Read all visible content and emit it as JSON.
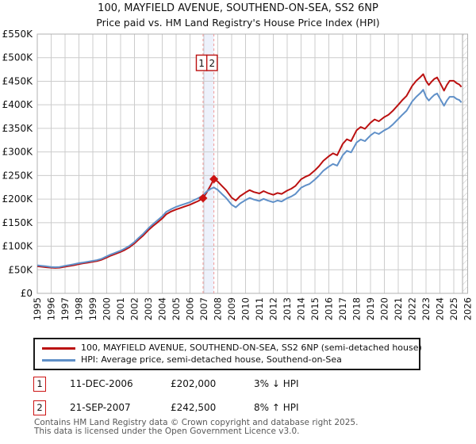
{
  "title": {
    "line1": "100, MAYFIELD AVENUE, SOUTHEND-ON-SEA, SS2 6NP",
    "line2": "Price paid vs. HM Land Registry's House Price Index (HPI)"
  },
  "legend": [
    {
      "label": "100, MAYFIELD AVENUE, SOUTHEND-ON-SEA, SS2 6NP (semi-detached house)",
      "color": "#bb1111"
    },
    {
      "label": "HPI: Average price, semi-detached house, Southend-on-Sea",
      "color": "#6090c8"
    }
  ],
  "transactions": [
    {
      "num": "1",
      "date": "11-DEC-2006",
      "price": "£202,000",
      "hpi_diff": "3% ↓ HPI",
      "year": 2006.94,
      "value_k": 202
    },
    {
      "num": "2",
      "date": "21-SEP-2007",
      "price": "£242,500",
      "hpi_diff": "8% ↑ HPI",
      "year": 2007.72,
      "value_k": 242.5
    }
  ],
  "footer": {
    "line1": "Contains HM Land Registry data © Crown copyright and database right 2025.",
    "line2": "This data is licensed under the Open Government Licence v3.0."
  },
  "chart_data": {
    "type": "line",
    "title": "100, MAYFIELD AVENUE, SOUTHEND-ON-SEA, SS2 6NP — Price paid vs. HPI",
    "values_unit": "GBP thousands",
    "x_axis": {
      "min": 1995,
      "max": 2026,
      "ticks": [
        1995,
        1996,
        1997,
        1998,
        1999,
        2000,
        2001,
        2002,
        2003,
        2004,
        2005,
        2006,
        2007,
        2008,
        2009,
        2010,
        2011,
        2012,
        2013,
        2014,
        2015,
        2016,
        2017,
        2018,
        2019,
        2020,
        2021,
        2022,
        2023,
        2024,
        2025,
        2026
      ]
    },
    "y_axis": {
      "min_k": 0,
      "max_k": 550,
      "step_k": 50,
      "labels": [
        "£0",
        "£50K",
        "£100K",
        "£150K",
        "£200K",
        "£250K",
        "£300K",
        "£350K",
        "£400K",
        "£450K",
        "£500K",
        "£550K"
      ]
    },
    "grid": true,
    "legend_position": "bottom",
    "hatch_start_year": 2025.63,
    "colors": {
      "grid": "#cccccc",
      "border": "#b0b0b0",
      "band": "#edf1fb",
      "dashed": "#f19a9a",
      "hatch": "#c4c4c4",
      "marker": "#cc1414"
    },
    "series": [
      {
        "name": "100, MAYFIELD AVENUE, SOUTHEND-ON-SEA, SS2 6NP (semi-detached house)",
        "color": "#bb1111",
        "points": [
          [
            1995,
            57.5
          ],
          [
            1995.3,
            56.5
          ],
          [
            1995.6,
            55.5
          ],
          [
            1996,
            54.5
          ],
          [
            1996.3,
            54
          ],
          [
            1996.6,
            54.5
          ],
          [
            1997,
            56.5
          ],
          [
            1997.3,
            58
          ],
          [
            1997.6,
            59.5
          ],
          [
            1998,
            62
          ],
          [
            1998.3,
            63.5
          ],
          [
            1998.6,
            65
          ],
          [
            1999,
            67
          ],
          [
            1999.3,
            68.5
          ],
          [
            1999.6,
            71
          ],
          [
            2000,
            76
          ],
          [
            2000.3,
            80
          ],
          [
            2000.6,
            83.5
          ],
          [
            2001,
            88
          ],
          [
            2001.3,
            92
          ],
          [
            2001.6,
            97
          ],
          [
            2002,
            106
          ],
          [
            2002.3,
            114
          ],
          [
            2002.6,
            122
          ],
          [
            2003,
            134
          ],
          [
            2003.3,
            142
          ],
          [
            2003.6,
            149
          ],
          [
            2004,
            159
          ],
          [
            2004.3,
            168
          ],
          [
            2004.6,
            173
          ],
          [
            2005,
            178
          ],
          [
            2005.3,
            181
          ],
          [
            2005.6,
            184
          ],
          [
            2006,
            188
          ],
          [
            2006.3,
            192
          ],
          [
            2006.6,
            196
          ],
          [
            2006.94,
            202
          ],
          [
            2007.2,
            214
          ],
          [
            2007.5,
            230
          ],
          [
            2007.72,
            242.5
          ],
          [
            2008,
            237
          ],
          [
            2008.3,
            228
          ],
          [
            2008.6,
            219
          ],
          [
            2009,
            203
          ],
          [
            2009.3,
            197
          ],
          [
            2009.6,
            206
          ],
          [
            2010,
            214
          ],
          [
            2010.3,
            219
          ],
          [
            2010.6,
            215
          ],
          [
            2011,
            212
          ],
          [
            2011.3,
            217
          ],
          [
            2011.6,
            213
          ],
          [
            2012,
            209
          ],
          [
            2012.3,
            213
          ],
          [
            2012.6,
            211
          ],
          [
            2013,
            218
          ],
          [
            2013.3,
            222
          ],
          [
            2013.6,
            228
          ],
          [
            2014,
            242
          ],
          [
            2014.3,
            247
          ],
          [
            2014.6,
            251
          ],
          [
            2015,
            261
          ],
          [
            2015.3,
            270
          ],
          [
            2015.6,
            281
          ],
          [
            2016,
            291
          ],
          [
            2016.3,
            297
          ],
          [
            2016.6,
            293
          ],
          [
            2017,
            317
          ],
          [
            2017.3,
            327
          ],
          [
            2017.6,
            323
          ],
          [
            2018,
            346
          ],
          [
            2018.3,
            353
          ],
          [
            2018.6,
            349
          ],
          [
            2019,
            362
          ],
          [
            2019.3,
            369
          ],
          [
            2019.6,
            365
          ],
          [
            2020,
            374
          ],
          [
            2020.3,
            379
          ],
          [
            2020.6,
            387
          ],
          [
            2021,
            400
          ],
          [
            2021.3,
            410
          ],
          [
            2021.6,
            419
          ],
          [
            2022,
            440
          ],
          [
            2022.3,
            451
          ],
          [
            2022.6,
            459
          ],
          [
            2022.8,
            465
          ],
          [
            2023,
            451
          ],
          [
            2023.2,
            442
          ],
          [
            2023.4,
            449
          ],
          [
            2023.6,
            455
          ],
          [
            2023.8,
            458
          ],
          [
            2024,
            447
          ],
          [
            2024.3,
            430
          ],
          [
            2024.5,
            442
          ],
          [
            2024.7,
            451
          ],
          [
            2025,
            451
          ],
          [
            2025.2,
            446
          ],
          [
            2025.4,
            443
          ],
          [
            2025.55,
            438
          ]
        ]
      },
      {
        "name": "HPI: Average price, semi-detached house, Southend-on-Sea",
        "color": "#6090c8",
        "points": [
          [
            1995,
            59.5
          ],
          [
            1995.3,
            58.5
          ],
          [
            1995.6,
            57.5
          ],
          [
            1996,
            56
          ],
          [
            1996.3,
            55.5
          ],
          [
            1996.6,
            56
          ],
          [
            1997,
            58.5
          ],
          [
            1997.3,
            60
          ],
          [
            1997.6,
            61.5
          ],
          [
            1998,
            64
          ],
          [
            1998.3,
            65.5
          ],
          [
            1998.6,
            67
          ],
          [
            1999,
            69
          ],
          [
            1999.3,
            70.5
          ],
          [
            1999.6,
            73
          ],
          [
            2000,
            78.5
          ],
          [
            2000.3,
            82.5
          ],
          [
            2000.6,
            86
          ],
          [
            2001,
            90.5
          ],
          [
            2001.3,
            95
          ],
          [
            2001.6,
            100
          ],
          [
            2002,
            109
          ],
          [
            2002.3,
            117.5
          ],
          [
            2002.6,
            125.5
          ],
          [
            2003,
            138
          ],
          [
            2003.3,
            146
          ],
          [
            2003.6,
            153.5
          ],
          [
            2004,
            163.5
          ],
          [
            2004.3,
            173
          ],
          [
            2004.6,
            178
          ],
          [
            2005,
            183.5
          ],
          [
            2005.3,
            186.5
          ],
          [
            2005.6,
            189.5
          ],
          [
            2006,
            193.5
          ],
          [
            2006.3,
            198
          ],
          [
            2006.6,
            202
          ],
          [
            2006.94,
            208
          ],
          [
            2007.2,
            216
          ],
          [
            2007.5,
            222
          ],
          [
            2007.72,
            224.5
          ],
          [
            2008,
            219.5
          ],
          [
            2008.3,
            211
          ],
          [
            2008.6,
            202.5
          ],
          [
            2009,
            188
          ],
          [
            2009.3,
            182.5
          ],
          [
            2009.6,
            190.5
          ],
          [
            2010,
            198
          ],
          [
            2010.3,
            202.5
          ],
          [
            2010.6,
            199
          ],
          [
            2011,
            196
          ],
          [
            2011.3,
            200.5
          ],
          [
            2011.6,
            197
          ],
          [
            2012,
            193.5
          ],
          [
            2012.3,
            197
          ],
          [
            2012.6,
            195
          ],
          [
            2013,
            202
          ],
          [
            2013.3,
            205.5
          ],
          [
            2013.6,
            211
          ],
          [
            2014,
            224
          ],
          [
            2014.3,
            228.5
          ],
          [
            2014.6,
            232
          ],
          [
            2015,
            241.5
          ],
          [
            2015.3,
            250
          ],
          [
            2015.6,
            260
          ],
          [
            2016,
            269
          ],
          [
            2016.3,
            274.5
          ],
          [
            2016.6,
            271
          ],
          [
            2017,
            293
          ],
          [
            2017.3,
            302.5
          ],
          [
            2017.6,
            299
          ],
          [
            2018,
            320
          ],
          [
            2018.3,
            326.5
          ],
          [
            2018.6,
            323
          ],
          [
            2019,
            335
          ],
          [
            2019.3,
            341.5
          ],
          [
            2019.6,
            338
          ],
          [
            2020,
            346
          ],
          [
            2020.3,
            350.5
          ],
          [
            2020.6,
            358
          ],
          [
            2021,
            370
          ],
          [
            2021.3,
            379
          ],
          [
            2021.6,
            387.5
          ],
          [
            2022,
            407
          ],
          [
            2022.3,
            417
          ],
          [
            2022.6,
            425
          ],
          [
            2022.8,
            432
          ],
          [
            2023,
            417
          ],
          [
            2023.2,
            409
          ],
          [
            2023.4,
            415.5
          ],
          [
            2023.6,
            421
          ],
          [
            2023.8,
            424
          ],
          [
            2024,
            413.5
          ],
          [
            2024.3,
            398
          ],
          [
            2024.5,
            409
          ],
          [
            2024.7,
            417
          ],
          [
            2025,
            417
          ],
          [
            2025.2,
            412.5
          ],
          [
            2025.4,
            410
          ],
          [
            2025.55,
            405
          ]
        ]
      }
    ]
  }
}
